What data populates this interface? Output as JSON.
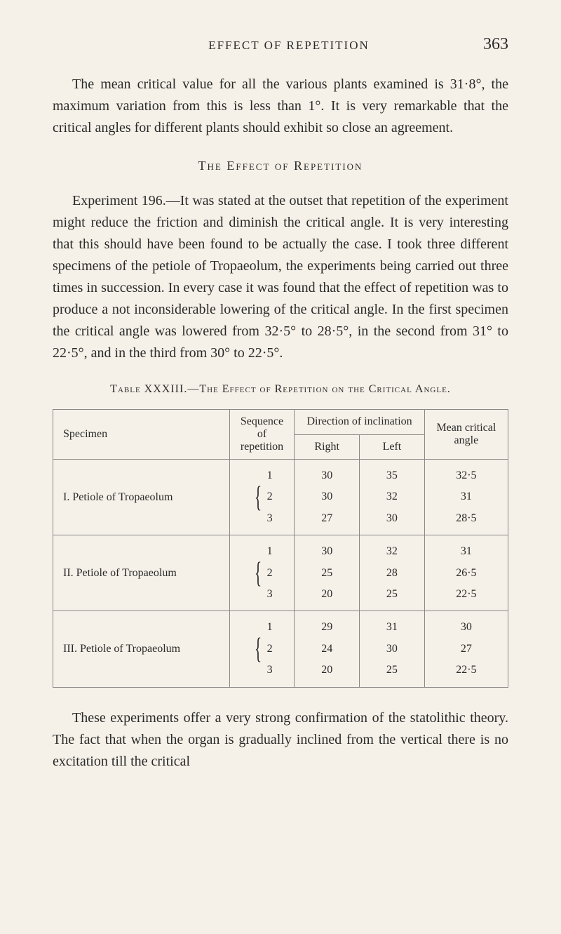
{
  "header": {
    "running_head": "EFFECT OF REPETITION",
    "page_number": "363"
  },
  "para1": "The mean critical value for all the various plants examined is 31·8°, the maximum variation from this is less than 1°. It is very remarkable that the critical angles for different plants should exhibit so close an agreement.",
  "section_heading": "The Effect of Repetition",
  "para2": "Experiment 196.—It was stated at the outset that repetition of the experiment might reduce the friction and diminish the critical angle. It is very interesting that this should have been found to be actually the case. I took three different specimens of the petiole of Tropaeolum, the experiments being carried out three times in succession. In every case it was found that the effect of repetition was to produce a not inconsiderable lowering of the critical angle. In the first specimen the critical angle was lowered from 32·5° to 28·5°, in the second from 31° to 22·5°, and in the third from 30° to 22·5°.",
  "table": {
    "caption": "Table XXXIII.—The Effect of Repetition on the Critical Angle.",
    "headers": {
      "specimen": "Specimen",
      "sequence": "Sequence of repetition",
      "direction": "Direction of inclination",
      "right": "Right",
      "left": "Left",
      "mean": "Mean critical angle"
    },
    "rows": [
      {
        "specimen": "I. Petiole of Tropaeolum",
        "seq": "1\n2\n3",
        "right": "30\n30\n27",
        "left": "35\n32\n30",
        "mean": "32·5\n31\n28·5"
      },
      {
        "specimen": "II. Petiole of Tropaeolum",
        "seq": "1\n2\n3",
        "right": "30\n25\n20",
        "left": "32\n28\n25",
        "mean": "31\n26·5\n22·5"
      },
      {
        "specimen": "III. Petiole of Tropaeolum",
        "seq": "1\n2\n3",
        "right": "29\n24\n20",
        "left": "31\n30\n25",
        "mean": "30\n27\n22·5"
      }
    ]
  },
  "para3": "These experiments offer a very strong confirmation of the statolithic theory. The fact that when the organ is gradually inclined from the vertical there is no excitation till the critical"
}
